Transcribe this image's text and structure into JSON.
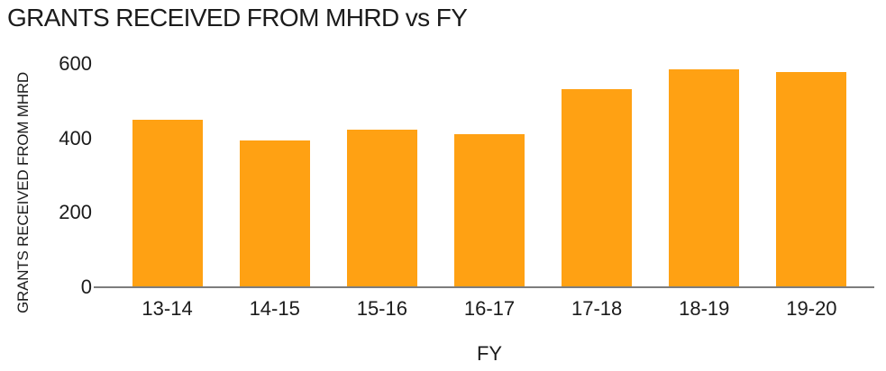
{
  "chart_data": {
    "type": "bar",
    "title": "GRANTS RECEIVED FROM MHRD vs FY",
    "xlabel": "FY",
    "ylabel": "GRANTS RECEIVED FROM MHRD",
    "categories": [
      "13-14",
      "14-15",
      "15-16",
      "16-17",
      "17-18",
      "18-19",
      "19-20"
    ],
    "values": [
      450,
      395,
      424,
      411,
      532,
      585,
      578
    ],
    "ylim": [
      0,
      600
    ],
    "yticks": [
      0,
      200,
      400,
      600
    ],
    "grid": false,
    "legend": false,
    "bar_color": "#FFA113",
    "axis_line_color": "#7D7D7D",
    "text_color": "#1B1B1B"
  }
}
